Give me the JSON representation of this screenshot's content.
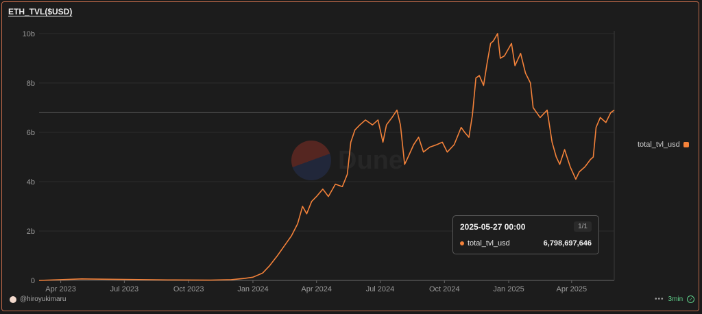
{
  "title": "ETH_TVL($USD)",
  "author": "@hiroyukimaru",
  "refresh": "3min",
  "watermark": "Dune",
  "tooltip": {
    "time": "2025-05-27 00:00",
    "page": "1/1",
    "series": "total_tvl_usd",
    "value": "6,798,697,646"
  },
  "colors": {
    "line": "#f4823a",
    "background": "#1c1c1c",
    "grid": "#2b2b2b"
  },
  "chart_data": {
    "type": "line",
    "x_ticks": [
      "Apr 2023",
      "Jul 2023",
      "Oct 2023",
      "Jan 2024",
      "Apr 2024",
      "Jul 2024",
      "Oct 2024",
      "Jan 2025",
      "Apr 2025"
    ],
    "y_ticks": [
      "0",
      "2b",
      "4b",
      "6b",
      "8b",
      "10b"
    ],
    "ylim": [
      0,
      10000000000
    ],
    "xlim": [
      "2023-03-01",
      "2025-06-01"
    ],
    "legend": {
      "position": "right"
    },
    "grid": true,
    "series": [
      {
        "name": "total_tvl_usd",
        "points": [
          [
            "2023-03-01",
            0
          ],
          [
            "2023-05-01",
            60000000
          ],
          [
            "2023-07-01",
            40000000
          ],
          [
            "2023-09-01",
            20000000
          ],
          [
            "2023-11-01",
            10000000
          ],
          [
            "2023-12-01",
            30000000
          ],
          [
            "2023-12-20",
            80000000
          ],
          [
            "2024-01-01",
            130000000
          ],
          [
            "2024-01-15",
            300000000
          ],
          [
            "2024-01-25",
            600000000
          ],
          [
            "2024-02-05",
            1000000000
          ],
          [
            "2024-02-15",
            1400000000
          ],
          [
            "2024-02-25",
            1800000000
          ],
          [
            "2024-03-05",
            2300000000
          ],
          [
            "2024-03-12",
            3000000000
          ],
          [
            "2024-03-18",
            2700000000
          ],
          [
            "2024-03-25",
            3200000000
          ],
          [
            "2024-04-01",
            3400000000
          ],
          [
            "2024-04-10",
            3700000000
          ],
          [
            "2024-04-18",
            3400000000
          ],
          [
            "2024-04-28",
            3900000000
          ],
          [
            "2024-05-08",
            3800000000
          ],
          [
            "2024-05-15",
            4300000000
          ],
          [
            "2024-05-20",
            5600000000
          ],
          [
            "2024-05-26",
            6100000000
          ],
          [
            "2024-06-02",
            6300000000
          ],
          [
            "2024-06-10",
            6500000000
          ],
          [
            "2024-06-20",
            6300000000
          ],
          [
            "2024-06-28",
            6500000000
          ],
          [
            "2024-07-05",
            5600000000
          ],
          [
            "2024-07-10",
            6300000000
          ],
          [
            "2024-07-18",
            6600000000
          ],
          [
            "2024-07-25",
            6900000000
          ],
          [
            "2024-07-30",
            6300000000
          ],
          [
            "2024-08-05",
            4700000000
          ],
          [
            "2024-08-10",
            5000000000
          ],
          [
            "2024-08-18",
            5500000000
          ],
          [
            "2024-08-25",
            5800000000
          ],
          [
            "2024-09-01",
            5200000000
          ],
          [
            "2024-09-10",
            5400000000
          ],
          [
            "2024-09-20",
            5500000000
          ],
          [
            "2024-09-28",
            5600000000
          ],
          [
            "2024-10-05",
            5200000000
          ],
          [
            "2024-10-15",
            5500000000
          ],
          [
            "2024-10-25",
            6200000000
          ],
          [
            "2024-10-30",
            6000000000
          ],
          [
            "2024-11-05",
            5800000000
          ],
          [
            "2024-11-10",
            6700000000
          ],
          [
            "2024-11-15",
            8200000000
          ],
          [
            "2024-11-20",
            8300000000
          ],
          [
            "2024-11-26",
            7900000000
          ],
          [
            "2024-12-01",
            8800000000
          ],
          [
            "2024-12-06",
            9600000000
          ],
          [
            "2024-12-10",
            9700000000
          ],
          [
            "2024-12-16",
            10000000000
          ],
          [
            "2024-12-20",
            9000000000
          ],
          [
            "2024-12-26",
            9100000000
          ],
          [
            "2025-01-05",
            9600000000
          ],
          [
            "2025-01-10",
            8700000000
          ],
          [
            "2025-01-18",
            9200000000
          ],
          [
            "2025-01-25",
            8400000000
          ],
          [
            "2025-02-01",
            8000000000
          ],
          [
            "2025-02-05",
            7000000000
          ],
          [
            "2025-02-15",
            6600000000
          ],
          [
            "2025-02-25",
            6900000000
          ],
          [
            "2025-03-04",
            5600000000
          ],
          [
            "2025-03-10",
            5000000000
          ],
          [
            "2025-03-15",
            4700000000
          ],
          [
            "2025-03-22",
            5300000000
          ],
          [
            "2025-03-30",
            4600000000
          ],
          [
            "2025-04-07",
            4100000000
          ],
          [
            "2025-04-12",
            4400000000
          ],
          [
            "2025-04-20",
            4600000000
          ],
          [
            "2025-04-28",
            4900000000
          ],
          [
            "2025-05-02",
            5000000000
          ],
          [
            "2025-05-06",
            6200000000
          ],
          [
            "2025-05-12",
            6600000000
          ],
          [
            "2025-05-20",
            6400000000
          ],
          [
            "2025-05-27",
            6798697646
          ],
          [
            "2025-06-01",
            6900000000
          ]
        ]
      }
    ]
  }
}
